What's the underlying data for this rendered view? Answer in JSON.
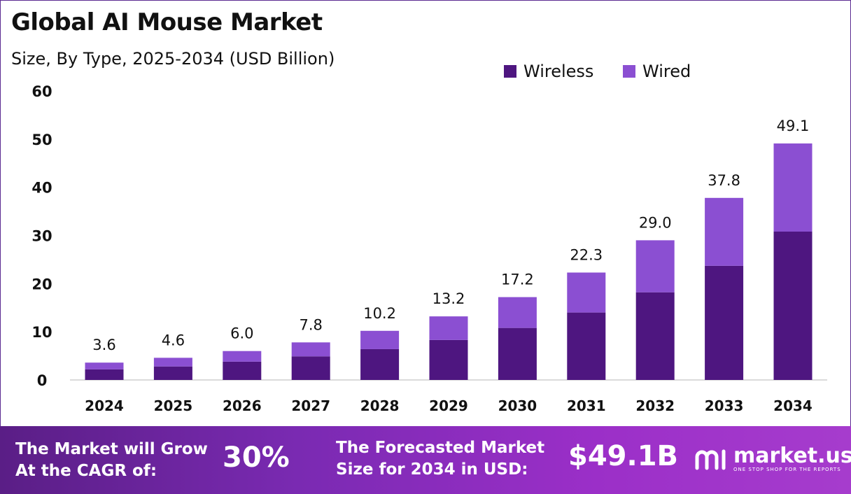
{
  "title": "Global AI Mouse Market",
  "subtitle": "Size, By Type, 2025-2034 (USD Billion)",
  "colors": {
    "wireless": "#4e1680",
    "wired": "#8b4fd2",
    "footer_start": "#5a1e86",
    "footer_end": "#a63ccd"
  },
  "chart_data": {
    "type": "bar",
    "stacked": true,
    "categories": [
      "2024",
      "2025",
      "2026",
      "2027",
      "2028",
      "2029",
      "2030",
      "2031",
      "2032",
      "2033",
      "2034"
    ],
    "series": [
      {
        "name": "Wireless",
        "values": [
          2.2,
          2.8,
          3.8,
          4.9,
          6.4,
          8.3,
          10.8,
          14.0,
          18.2,
          23.7,
          30.8
        ]
      },
      {
        "name": "Wired",
        "values": [
          1.4,
          1.8,
          2.2,
          2.9,
          3.8,
          4.9,
          6.4,
          8.3,
          10.8,
          14.1,
          18.3
        ]
      }
    ],
    "totals": [
      3.6,
      4.6,
      6.0,
      7.8,
      10.2,
      13.2,
      17.2,
      22.3,
      29.0,
      37.8,
      49.1
    ],
    "total_labels": [
      "3.6",
      "4.6",
      "6.0",
      "7.8",
      "10.2",
      "13.2",
      "17.2",
      "22.3",
      "29.0",
      "37.8",
      "49.1"
    ],
    "ylim": [
      0,
      60
    ],
    "yticks": [
      "0",
      "10",
      "20",
      "30",
      "40",
      "50",
      "60"
    ],
    "grid": false,
    "legend_position": "top-right"
  },
  "footer": {
    "cagr_text": "The Market will Grow At the CAGR of:",
    "cagr_value": "30%",
    "forecast_text": "The Forecasted Market Size for 2034 in USD:",
    "forecast_value": "$49.1B",
    "brand_name": "market.us",
    "brand_tagline": "ONE STOP SHOP FOR THE REPORTS"
  }
}
